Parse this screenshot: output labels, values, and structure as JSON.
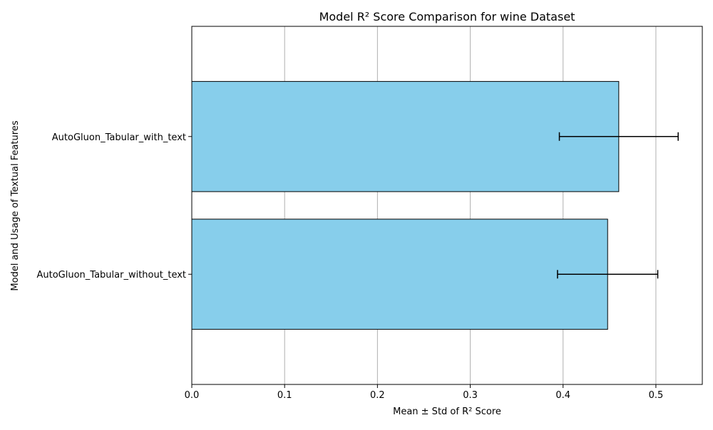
{
  "chart_data": {
    "type": "bar",
    "orientation": "horizontal",
    "title": "Model R² Score Comparison for wine Dataset",
    "xlabel": "Mean ± Std of R² Score",
    "ylabel": "Model and Usage of Textual Features",
    "categories": [
      "AutoGluon_Tabular_with_text",
      "AutoGluon_Tabular_without_text"
    ],
    "values": [
      0.46,
      0.448
    ],
    "errors": [
      0.064,
      0.054
    ],
    "xlim": [
      0.0,
      0.55
    ],
    "xticks": [
      "0.0",
      "0.1",
      "0.2",
      "0.3",
      "0.4",
      "0.5"
    ],
    "xtick_values": [
      0.0,
      0.1,
      0.2,
      0.3,
      0.4,
      0.5
    ],
    "grid": "x-axis only",
    "legend": "none",
    "bar_color": "#87ceeb",
    "bar_edge_color": "#000000",
    "error_color": "#000000",
    "grid_color": "#b0b0b0"
  }
}
